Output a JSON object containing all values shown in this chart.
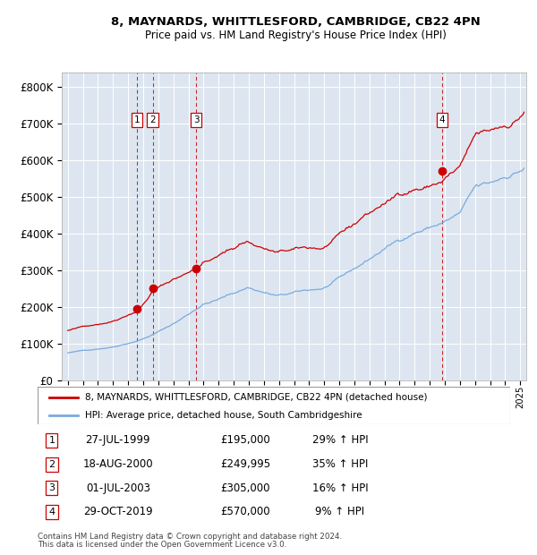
{
  "title_line1": "8, MAYNARDS, WHITTLESFORD, CAMBRIDGE, CB22 4PN",
  "title_line2": "Price paid vs. HM Land Registry's House Price Index (HPI)",
  "plot_bg_color": "#dde6f0",
  "grid_color": "#ffffff",
  "red_line_color": "#cc0000",
  "blue_line_color": "#7aaadd",
  "yticks": [
    0,
    100000,
    200000,
    300000,
    400000,
    500000,
    600000,
    700000,
    800000
  ],
  "ytick_labels": [
    "£0",
    "£100K",
    "£200K",
    "£300K",
    "£400K",
    "£500K",
    "£600K",
    "£700K",
    "£800K"
  ],
  "xlim_start": 1994.6,
  "xlim_end": 2025.4,
  "ylim_min": 0,
  "ylim_max": 840000,
  "sales": [
    {
      "num": 1,
      "year": 1999.57,
      "price": 195000,
      "date": "27-JUL-1999",
      "pct": "29%",
      "dir": "↑"
    },
    {
      "num": 2,
      "year": 2000.63,
      "price": 249995,
      "date": "18-AUG-2000",
      "pct": "35%",
      "dir": "↑"
    },
    {
      "num": 3,
      "year": 2003.5,
      "price": 305000,
      "date": "01-JUL-2003",
      "pct": "16%",
      "dir": "↑"
    },
    {
      "num": 4,
      "year": 2019.83,
      "price": 570000,
      "date": "29-OCT-2019",
      "pct": "9%",
      "dir": "↑"
    }
  ],
  "legend_line1": "8, MAYNARDS, WHITTLESFORD, CAMBRIDGE, CB22 4PN (detached house)",
  "legend_line2": "HPI: Average price, detached house, South Cambridgeshire",
  "footer_line1": "Contains HM Land Registry data © Crown copyright and database right 2024.",
  "footer_line2": "This data is licensed under the Open Government Licence v3.0."
}
